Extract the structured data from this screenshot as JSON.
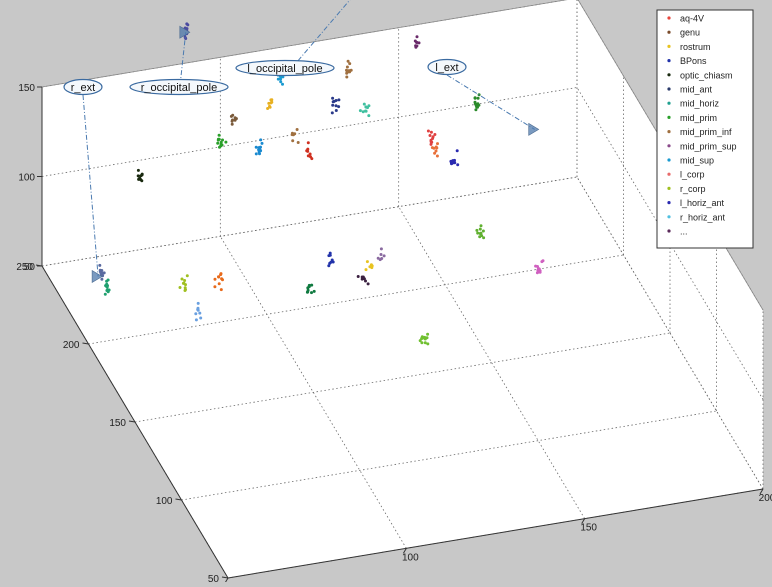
{
  "chart_data": {
    "type": "scatter",
    "projection": "3d",
    "grid": true,
    "legend_position": "top-right",
    "title": "",
    "xlabel": "",
    "ylabel": "",
    "zlabel": "",
    "x_axis": {
      "ticks": [
        "50",
        "100",
        "150",
        "200"
      ],
      "range": [
        50,
        200
      ]
    },
    "y_axis": {
      "ticks": [
        "50",
        "100",
        "150",
        "200",
        "250"
      ],
      "range": [
        50,
        250
      ]
    },
    "z_axis": {
      "ticks": [
        "50",
        "100",
        "150"
      ],
      "range": [
        50,
        150
      ]
    },
    "series": [
      {
        "name": "aq-4V",
        "color": "#e8453c"
      },
      {
        "name": "genu",
        "color": "#7a4a2a"
      },
      {
        "name": "rostrum",
        "color": "#e8c320"
      },
      {
        "name": "BPons",
        "color": "#2233aa"
      },
      {
        "name": "optic_chiasm",
        "color": "#1a2a10"
      },
      {
        "name": "mid_ant",
        "color": "#2a3a6a"
      },
      {
        "name": "mid_horiz",
        "color": "#20a090"
      },
      {
        "name": "mid_prim",
        "color": "#2aa02a"
      },
      {
        "name": "mid_prim_inf",
        "color": "#a07040"
      },
      {
        "name": "mid_prim_sup",
        "color": "#8a4a8a"
      },
      {
        "name": "mid_sup",
        "color": "#1a9ad0"
      },
      {
        "name": "l_corp",
        "color": "#e86a6a"
      },
      {
        "name": "r_corp",
        "color": "#a0c020"
      },
      {
        "name": "l_horiz_ant",
        "color": "#2a2ab0"
      },
      {
        "name": "r_horiz_ant",
        "color": "#50c0e0"
      },
      {
        "name": "...",
        "color": "#5a2a5a"
      }
    ],
    "clusters": [
      {
        "series": "mid_ant",
        "x": 62,
        "y": 232,
        "z": 58,
        "color": "#5a6aa0",
        "n": 14
      },
      {
        "series": "mid_horiz",
        "x": 62,
        "y": 226,
        "z": 56,
        "color": "#20a070",
        "n": 12
      },
      {
        "series": "optic_chiasm",
        "x": 75,
        "y": 240,
        "z": 100,
        "color": "#1a2a10",
        "n": 10
      },
      {
        "series": "r_corp",
        "x": 78,
        "y": 205,
        "z": 70,
        "color": "#a0c020",
        "n": 10
      },
      {
        "series": "r_horiz_ant",
        "x": 80,
        "y": 198,
        "z": 60,
        "color": "#6aa0e0",
        "n": 8
      },
      {
        "series": "aq-4V",
        "x": 88,
        "y": 205,
        "z": 68,
        "color": "#e86a1a",
        "n": 10
      },
      {
        "series": "mid_prim",
        "x": 98,
        "y": 242,
        "z": 110,
        "color": "#2aa02a",
        "n": 12
      },
      {
        "series": "genu",
        "x": 103,
        "y": 248,
        "z": 115,
        "color": "#7a5a3a",
        "n": 8
      },
      {
        "series": "mid_sup",
        "x": 108,
        "y": 238,
        "z": 108,
        "color": "#1a8ad0",
        "n": 12
      },
      {
        "series": "rostrum",
        "x": 114,
        "y": 250,
        "z": 122,
        "color": "#e8b020",
        "n": 8
      },
      {
        "series": "mid_sup",
        "x": 118,
        "y": 255,
        "z": 128,
        "color": "#1a9ad0",
        "n": 10
      },
      {
        "series": "mid_prim_inf",
        "x": 118,
        "y": 240,
        "z": 108,
        "color": "#a07040",
        "n": 8
      },
      {
        "series": "aq-4V",
        "x": 122,
        "y": 238,
        "z": 100,
        "color": "#d03020",
        "n": 8
      },
      {
        "series": "mid_prim_inf",
        "x": 138,
        "y": 258,
        "z": 122,
        "color": "#a07040",
        "n": 10
      },
      {
        "series": "mid_ant",
        "x": 132,
        "y": 250,
        "z": 112,
        "color": "#2a3a8a",
        "n": 10
      },
      {
        "series": "mid_horiz",
        "x": 140,
        "y": 248,
        "z": 110,
        "color": "#40c0a0",
        "n": 10
      },
      {
        "series": "...",
        "x": 158,
        "y": 262,
        "z": 128,
        "color": "#6a2a6a",
        "n": 8
      },
      {
        "series": "l_corp",
        "x": 158,
        "y": 245,
        "z": 90,
        "color": "#e04040",
        "n": 10
      },
      {
        "series": "aq-4V",
        "x": 158,
        "y": 242,
        "z": 86,
        "color": "#e8703a",
        "n": 8
      },
      {
        "series": "l_horiz_ant",
        "x": 163,
        "y": 240,
        "z": 80,
        "color": "#2a2ab0",
        "n": 10
      },
      {
        "series": "mid_prim",
        "x": 172,
        "y": 250,
        "z": 100,
        "color": "#2a8a2a",
        "n": 14
      },
      {
        "series": "BPons",
        "x": 118,
        "y": 200,
        "z": 75,
        "color": "#2233aa",
        "n": 8
      },
      {
        "series": "mid_horiz",
        "x": 112,
        "y": 200,
        "z": 60,
        "color": "#107a40",
        "n": 10
      },
      {
        "series": "rostrum",
        "x": 128,
        "y": 198,
        "z": 70,
        "color": "#e8c320",
        "n": 6
      },
      {
        "series": "mid_prim_sup",
        "x": 132,
        "y": 200,
        "z": 72,
        "color": "#8a6aa0",
        "n": 6
      },
      {
        "series": "...",
        "x": 126,
        "y": 196,
        "z": 65,
        "color": "#3a2040",
        "n": 8
      },
      {
        "series": "r_corp",
        "x": 160,
        "y": 200,
        "z": 75,
        "color": "#60b030",
        "n": 10
      },
      {
        "series": "mid_prim_sup",
        "x": 170,
        "y": 175,
        "z": 75,
        "color": "#d060c0",
        "n": 12
      },
      {
        "series": "r_corp",
        "x": 135,
        "y": 165,
        "z": 55,
        "color": "#70c030",
        "n": 12
      },
      {
        "series": "mid_prim_sup",
        "x": 95,
        "y": 268,
        "z": 150,
        "color": "#4a4aa0",
        "n": 14
      },
      {
        "series": "mid_sup",
        "x": 148,
        "y": 278,
        "z": 152,
        "color": "#1a7ab0",
        "n": 14
      }
    ],
    "landmarks": [
      {
        "label": "r_ext",
        "x": 60,
        "y": 228,
        "z": 60,
        "color": "#7a9ac0"
      },
      {
        "label": "r_occipital_pole",
        "x": 95,
        "y": 268,
        "z": 150,
        "color": "#6a8ab0"
      },
      {
        "label": "l_occipital_pole",
        "x": 148,
        "y": 278,
        "z": 152,
        "color": "#6a8ab0"
      },
      {
        "label": "l_ext",
        "x": 185,
        "y": 238,
        "z": 92,
        "color": "#7a9ac0"
      }
    ]
  }
}
